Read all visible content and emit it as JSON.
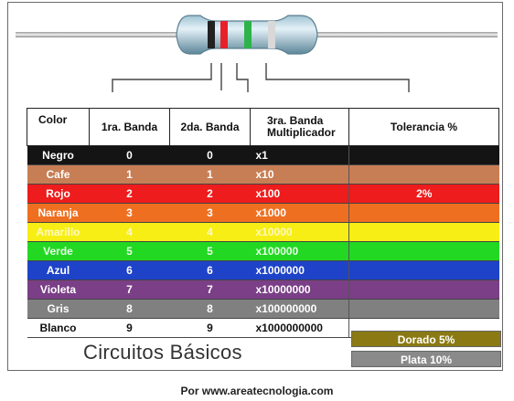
{
  "headers": {
    "color": "Color",
    "band1": "1ra. Banda",
    "band2": "2da. Banda",
    "band3_line1": "3ra. Banda",
    "band3_line2": "Multiplicador",
    "tolerance": "Tolerancia %"
  },
  "rows": [
    {
      "name": "Negro",
      "d1": "0",
      "d2": "0",
      "mult": "x1",
      "tol": "",
      "bg": "#141414",
      "fg": "#ffffff"
    },
    {
      "name": "Cafe",
      "d1": "1",
      "d2": "1",
      "mult": "x10",
      "tol": "",
      "bg": "#c87e55",
      "fg": "#ffffff"
    },
    {
      "name": "Rojo",
      "d1": "2",
      "d2": "2",
      "mult": "x100",
      "tol": "2%",
      "bg": "#ee1c1c",
      "fg": "#ffffff"
    },
    {
      "name": "Naranja",
      "d1": "3",
      "d2": "3",
      "mult": "x1000",
      "tol": "",
      "bg": "#ef6f21",
      "fg": "#ffffff"
    },
    {
      "name": "Amarillo",
      "d1": "4",
      "d2": "4",
      "mult": "x10000",
      "tol": "",
      "bg": "#f7ee16",
      "fg": "#fff9c0"
    },
    {
      "name": "Verde",
      "d1": "5",
      "d2": "5",
      "mult": "x100000",
      "tol": "",
      "bg": "#22d822",
      "fg": "#e8ffe8"
    },
    {
      "name": "Azul",
      "d1": "6",
      "d2": "6",
      "mult": "x1000000",
      "tol": "",
      "bg": "#1e43c8",
      "fg": "#ffffff"
    },
    {
      "name": "Violeta",
      "d1": "7",
      "d2": "7",
      "mult": "x10000000",
      "tol": "",
      "bg": "#7a3f86",
      "fg": "#ffffff"
    },
    {
      "name": "Gris",
      "d1": "8",
      "d2": "8",
      "mult": "x100000000",
      "tol": "",
      "bg": "#808080",
      "fg": "#ffffff"
    },
    {
      "name": "Blanco",
      "d1": "9",
      "d2": "9",
      "mult": "x1000000000",
      "tol": "",
      "bg": "#ffffff",
      "fg": "#111111"
    }
  ],
  "title": "Circuitos Básicos",
  "tolerance_badges": {
    "dorado": "Dorado  5%",
    "plata": "Plata  10%"
  },
  "credit": "Por www.areatecnologia.com",
  "resistor_band_colors": [
    "#222222",
    "#e8202a",
    "#2db34a",
    "#d8d8d8"
  ]
}
